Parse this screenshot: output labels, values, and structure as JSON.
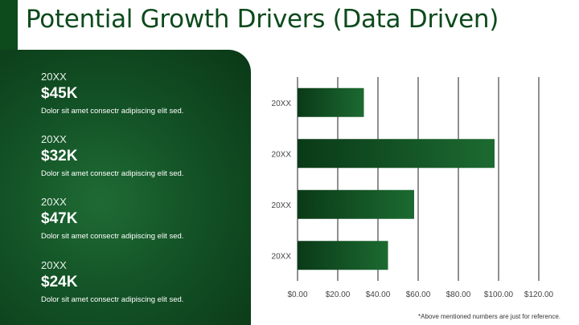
{
  "slide": {
    "title": "Potential Growth Drivers (Data Driven)",
    "footnote": "*Above mentioned numbers are just for reference."
  },
  "stats": [
    {
      "year": "20XX",
      "value": "$45K",
      "description": "Dolor sit amet consectr adipiscing elit sed."
    },
    {
      "year": "20XX",
      "value": "$32K",
      "description": "Dolor sit amet consectr adipiscing elit sed."
    },
    {
      "year": "20XX",
      "value": "$47K",
      "description": "Dolor sit amet consectr adipiscing elit sed."
    },
    {
      "year": "20XX",
      "value": "$24K",
      "description": "Dolor sit amet consectr adipiscing elit sed."
    }
  ],
  "colors": {
    "brand_green": "#0d4a1c",
    "bar_dark": "#0a3a17",
    "bar_light": "#1c6a31",
    "grid": "#222222"
  },
  "chart_data": {
    "type": "bar",
    "orientation": "horizontal",
    "categories": [
      "20XX",
      "20XX",
      "20XX",
      "20XX"
    ],
    "values": [
      33,
      98,
      58,
      45
    ],
    "xlim": [
      0,
      120
    ],
    "xticks": [
      0,
      20,
      40,
      60,
      80,
      100,
      120
    ],
    "xtick_labels": [
      "$0.00",
      "$20.00",
      "$40.00",
      "$60.00",
      "$80.00",
      "$100.00",
      "$120.00"
    ],
    "grid": true
  }
}
